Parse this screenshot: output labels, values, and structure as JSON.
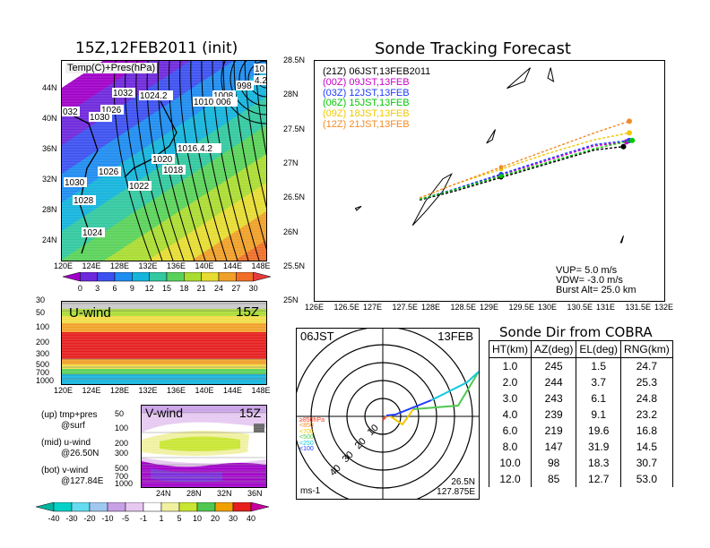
{
  "map": {
    "title": "15Z,12FEB2011 (init)",
    "label": "Temp(C)+Pres(hPa)",
    "lat_ticks": [
      "44N",
      "40N",
      "36N",
      "32N",
      "28N",
      "24N"
    ],
    "lon_ticks": [
      "120E",
      "124E",
      "128E",
      "132E",
      "136E",
      "140E",
      "144E",
      "148E"
    ],
    "isobars": [
      "1032",
      "1024.2",
      "1026",
      "1030",
      "032",
      "1008",
      "1010 006",
      "998",
      "1016.4.2",
      "1020",
      "1018",
      "1026",
      "1022",
      "1030",
      "1028",
      "1024",
      "10",
      "4.20"
    ],
    "colorbar": [
      "0",
      "3",
      "6",
      "9",
      "12",
      "15",
      "18",
      "21",
      "24",
      "27",
      "30"
    ],
    "colorbar_colors": [
      "#a000c8",
      "#6e28dc",
      "#3c50f0",
      "#1e8cf0",
      "#14b4dc",
      "#32c8a0",
      "#5ad25a",
      "#aadc32",
      "#e6dc32",
      "#f0a028",
      "#f06e28",
      "#e63c3c"
    ]
  },
  "uwind": {
    "label": "U-wind",
    "time": "15Z",
    "p_ticks": [
      "30",
      "50",
      "100",
      "200",
      "300",
      "500",
      "700",
      "1000"
    ],
    "lon_ticks": [
      "120E",
      "124E",
      "128E",
      "132E",
      "136E",
      "140E",
      "144E",
      "148E"
    ]
  },
  "vwind": {
    "label": "V-wind",
    "time": "15Z",
    "p_ticks": [
      "50",
      "100",
      "200",
      "300",
      "500",
      "700",
      "1000"
    ],
    "lat_ticks": [
      "24N",
      "28N",
      "32N",
      "36N"
    ],
    "colorbar": [
      "-40",
      "-30",
      "-20",
      "-10",
      "-5",
      "-1",
      "1",
      "5",
      "10",
      "20",
      "30",
      "40"
    ],
    "colorbar_colors": [
      "#00b4a0",
      "#00d2c8",
      "#64dcf0",
      "#a0c8f0",
      "#c8a0e6",
      "#e6c8f0",
      "#ffffff",
      "#f0f0a0",
      "#c8e632",
      "#50c850",
      "#f0a000",
      "#e61e1e",
      "#c800a0"
    ]
  },
  "notes": [
    {
      "k": "(up) tmp+pres",
      "v": "@surf"
    },
    {
      "k": "(mid) u-wind",
      "v": "@26.50N"
    },
    {
      "k": "(bot) v-wind",
      "v": "@127.84E"
    }
  ],
  "track": {
    "title": "Sonde Tracking Forecast",
    "lat_ticks": [
      "28.5N",
      "28N",
      "27.5N",
      "27N",
      "26.5N",
      "26N",
      "25.5N",
      "25N"
    ],
    "lon_ticks": [
      "126E",
      "126.5E",
      "127E",
      "127.5E",
      "128E",
      "128.5E",
      "129E",
      "129.5E",
      "130E",
      "130.5E",
      "131E",
      "131.5E",
      "132E"
    ],
    "legend": [
      {
        "z": "(21Z)",
        "t": "06JST,13FEB2011",
        "color": "#000000"
      },
      {
        "z": "(00Z)",
        "t": "09JST,13FEB",
        "color": "#c800c8"
      },
      {
        "z": "(03Z)",
        "t": "12JST,13FEB",
        "color": "#1e3cff"
      },
      {
        "z": "(06Z)",
        "t": "15JST,13FEB",
        "color": "#00c800"
      },
      {
        "z": "(09Z)",
        "t": "18JST,13FEB",
        "color": "#f0c800"
      },
      {
        "z": "(12Z)",
        "t": "21JST,13FEB",
        "color": "#f08c28"
      }
    ],
    "params": [
      "VUP= 5.0 m/s",
      "VDW= -3.0 m/s",
      "Burst Alt= 25.0 km"
    ]
  },
  "chart_data": [
    {
      "type": "line",
      "title": "Sonde Tracking Forecast",
      "xlim": [
        126,
        132
      ],
      "ylim": [
        25,
        28.5
      ],
      "series": [
        {
          "name": "(21Z) 06JST,13FEB2011",
          "x": [
            127.8,
            128.4,
            129.2,
            130.0,
            130.8,
            131.3
          ],
          "y": [
            26.47,
            26.6,
            26.8,
            27.0,
            27.2,
            27.25
          ]
        },
        {
          "name": "(00Z) 09JST,13FEB",
          "x": [
            127.8,
            128.4,
            129.2,
            130.0,
            130.8,
            131.35
          ],
          "y": [
            26.48,
            26.62,
            26.84,
            27.05,
            27.26,
            27.32
          ]
        },
        {
          "name": "(03Z) 12JST,13FEB",
          "x": [
            127.8,
            128.4,
            129.2,
            130.0,
            130.8,
            131.4
          ],
          "y": [
            26.48,
            26.63,
            26.85,
            27.07,
            27.28,
            27.34
          ]
        },
        {
          "name": "(06Z) 15JST,13FEB",
          "x": [
            127.8,
            128.4,
            129.2,
            130.0,
            130.8,
            131.45
          ],
          "y": [
            26.48,
            26.62,
            26.82,
            27.02,
            27.22,
            27.34
          ]
        },
        {
          "name": "(09Z) 18JST,13FEB",
          "x": [
            127.8,
            128.4,
            129.2,
            130.0,
            130.8,
            131.4
          ],
          "y": [
            26.5,
            26.7,
            26.92,
            27.15,
            27.35,
            27.45
          ]
        },
        {
          "name": "(12Z) 21JST,13FEB",
          "x": [
            127.8,
            128.4,
            129.2,
            130.0,
            130.8,
            131.4
          ],
          "y": [
            26.5,
            26.7,
            26.95,
            27.2,
            27.45,
            27.62
          ]
        }
      ]
    },
    {
      "type": "table",
      "title": "Sonde Dir from COBRA",
      "columns": [
        "HT(km)",
        "AZ(deg)",
        "EL(deg)",
        "RNG(km)"
      ],
      "rows": [
        [
          "1.0",
          "245",
          "1.5",
          "24.7"
        ],
        [
          "2.0",
          "244",
          "3.7",
          "25.3"
        ],
        [
          "3.0",
          "243",
          "6.1",
          "24.8"
        ],
        [
          "4.0",
          "239",
          "9.1",
          "23.2"
        ],
        [
          "6.0",
          "219",
          "19.6",
          "16.8"
        ],
        [
          "8.0",
          "147",
          "31.9",
          "14.5"
        ],
        [
          "10.0",
          "98",
          "18.3",
          "30.7"
        ],
        [
          "12.0",
          "85",
          "12.7",
          "53.0"
        ]
      ]
    }
  ],
  "polar": {
    "time": "06JST",
    "date": "13FEB",
    "range_labels": [
      "10",
      "20",
      "30",
      "40"
    ],
    "legend": [
      {
        "t": "≥850hPa",
        "c": "#ff3c1e"
      },
      {
        "t": "<850",
        "c": "#f08c28"
      },
      {
        "t": "<700",
        "c": "#f0c800"
      },
      {
        "t": "<500",
        "c": "#50c850"
      },
      {
        "t": "<250",
        "c": "#14c8dc"
      },
      {
        "t": "<100",
        "c": "#1e3cff"
      }
    ],
    "unit": "ms-1",
    "loc1": "26.5N",
    "loc2": "127.875E"
  }
}
